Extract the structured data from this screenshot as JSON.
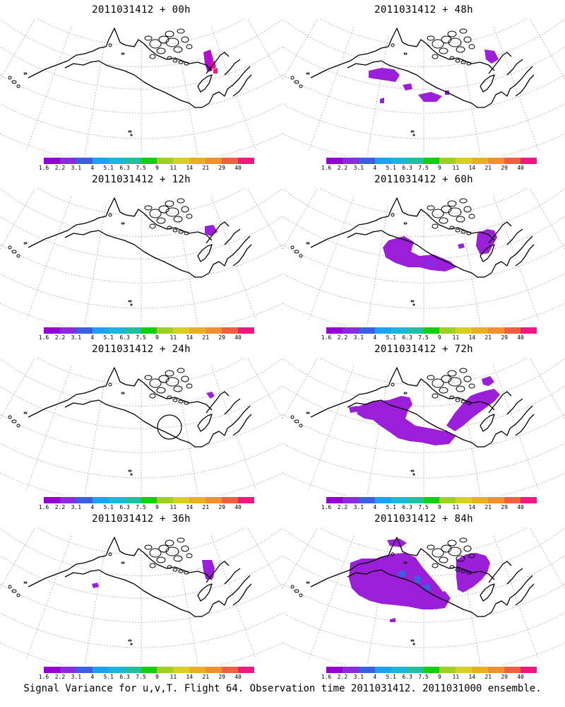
{
  "panels": [
    {
      "title": "2011031412 + 00h",
      "blobs": "p00",
      "circle": false
    },
    {
      "title": "2011031412 + 48h",
      "blobs": "p48",
      "circle": false
    },
    {
      "title": "2011031412 + 12h",
      "blobs": "p12",
      "circle": false
    },
    {
      "title": "2011031412 + 60h",
      "blobs": "p60",
      "circle": false
    },
    {
      "title": "2011031412 + 24h",
      "blobs": "p24",
      "circle": true
    },
    {
      "title": "2011031412 + 72h",
      "blobs": "p72",
      "circle": false
    },
    {
      "title": "2011031412 + 36h",
      "blobs": "p36",
      "circle": false
    },
    {
      "title": "2011031412 + 84h",
      "blobs": "p84",
      "circle": false
    }
  ],
  "colorbar": {
    "colors": [
      "#9400d3",
      "#8a2be2",
      "#3a5fe0",
      "#1aa3f0",
      "#18b8d8",
      "#20c0a0",
      "#10d010",
      "#a0d020",
      "#d8d020",
      "#e8b020",
      "#f09030",
      "#f06040",
      "#f01880"
    ],
    "labels": [
      "1.6",
      "2.2",
      "3.1",
      "4",
      "5.1",
      "6.3",
      "7.5",
      "9",
      "11",
      "14",
      "21",
      "29",
      "40"
    ]
  },
  "footer": "Signal Variance for u,v,T. Flight 64. Observation time 2011031412. 2011031000 ensemble."
}
